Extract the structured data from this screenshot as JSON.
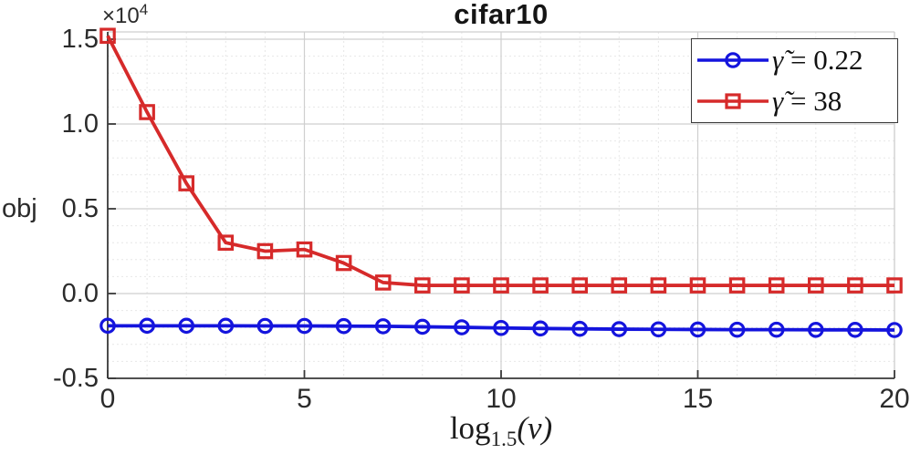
{
  "figure": {
    "title": "cifar10",
    "ylabel": "obj",
    "y_multiplier": {
      "times": "×10",
      "exponent": "4"
    },
    "xlabel": {
      "func": "log",
      "base": "1.5",
      "arg": "(v)"
    }
  },
  "legend": {
    "items": [
      {
        "symbol": "γ̃",
        "value": "= 0.22",
        "color": "#1414dd",
        "marker": "circle"
      },
      {
        "symbol": "γ̃",
        "value": "= 38",
        "color": "#d62a2a",
        "marker": "square"
      }
    ]
  },
  "axes": {
    "x_tick_labels": [
      "0",
      "5",
      "10",
      "15",
      "20"
    ],
    "y_tick_labels": [
      "1.5",
      "1.0",
      "0.5",
      "0.0",
      "-0.5"
    ]
  },
  "colors": {
    "axis": "#3a3a3a",
    "box_light": "#cfcfcf",
    "grid_major": "#cfcfcf",
    "grid_minor": "#e7e7e7",
    "tick_text": "#2b2b2b",
    "series_blue": "#1414dd",
    "series_red": "#d62a2a"
  },
  "chart_data": {
    "type": "line",
    "title": "cifar10",
    "xlabel": "log_1.5(v)",
    "ylabel": "obj",
    "y_unit_multiplier": 10000,
    "xlim": [
      0,
      20
    ],
    "ylim": [
      -0.5,
      1.543
    ],
    "x_ticks": [
      0,
      5,
      10,
      15,
      20
    ],
    "y_ticks": [
      1.5,
      1.0,
      0.5,
      0.0,
      -0.5
    ],
    "grid": {
      "major": true,
      "minor": true
    },
    "legend_position": "upper right",
    "x": [
      0,
      1,
      2,
      3,
      4,
      5,
      6,
      7,
      8,
      9,
      10,
      11,
      12,
      13,
      14,
      15,
      16,
      17,
      18,
      19,
      20
    ],
    "series": [
      {
        "name": "γ̃ = 0.22",
        "color": "#1414dd",
        "marker": "circle",
        "values": [
          -0.19,
          -0.19,
          -0.19,
          -0.19,
          -0.191,
          -0.191,
          -0.192,
          -0.193,
          -0.196,
          -0.199,
          -0.203,
          -0.206,
          -0.208,
          -0.21,
          -0.211,
          -0.212,
          -0.213,
          -0.213,
          -0.214,
          -0.214,
          -0.215
        ]
      },
      {
        "name": "γ̃ = 38",
        "color": "#d62a2a",
        "marker": "square",
        "values": [
          1.52,
          1.07,
          0.65,
          0.3,
          0.25,
          0.26,
          0.18,
          0.065,
          0.048,
          0.048,
          0.048,
          0.048,
          0.048,
          0.048,
          0.048,
          0.048,
          0.048,
          0.048,
          0.048,
          0.048,
          0.048
        ]
      }
    ]
  }
}
